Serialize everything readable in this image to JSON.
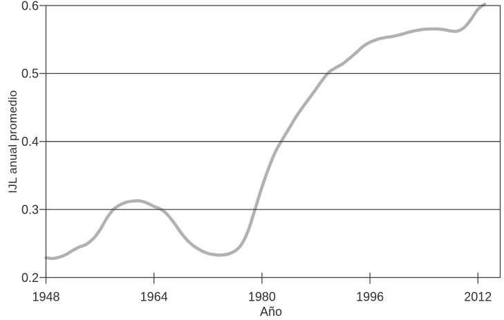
{
  "figure": {
    "background": "#ffffff"
  },
  "chart_data": {
    "type": "line",
    "title": "",
    "xlabel": "Año",
    "ylabel": "IJL anual promedio",
    "x_ticks": [
      1948,
      1964,
      1980,
      1996,
      2012
    ],
    "y_ticks": [
      0.2,
      0.3,
      0.4,
      0.5,
      0.6
    ],
    "xlim": [
      1948,
      2015.3
    ],
    "ylim": [
      0.2,
      0.6
    ],
    "grid": "horizontal-major-only",
    "frame": "full-box",
    "legend": "none",
    "axis_color": "#414141",
    "text_color": "#2e2e2e",
    "series": [
      {
        "name": "IJL anual promedio",
        "color": "#b1b1b1",
        "x": [
          1948,
          1949,
          1950,
          1951,
          1952,
          1953,
          1954,
          1955,
          1956,
          1957,
          1958,
          1959,
          1960,
          1961,
          1962,
          1963,
          1964,
          1965,
          1966,
          1967,
          1968,
          1969,
          1970,
          1971,
          1972,
          1973,
          1974,
          1975,
          1976,
          1977,
          1978,
          1979,
          1980,
          1981,
          1982,
          1983,
          1984,
          1985,
          1986,
          1987,
          1988,
          1989,
          1990,
          1991,
          1992,
          1993,
          1994,
          1995,
          1996,
          1997,
          1998,
          1999,
          2000,
          2001,
          2002,
          2003,
          2004,
          2005,
          2006,
          2007,
          2008,
          2009,
          2010,
          2011,
          2012,
          2013
        ],
        "values": [
          0.229,
          0.228,
          0.23,
          0.234,
          0.24,
          0.245,
          0.249,
          0.257,
          0.27,
          0.287,
          0.3,
          0.307,
          0.311,
          0.3125,
          0.3125,
          0.3095,
          0.3045,
          0.3005,
          0.2925,
          0.28,
          0.266,
          0.254,
          0.2455,
          0.2395,
          0.2355,
          0.2335,
          0.233,
          0.2345,
          0.239,
          0.249,
          0.27,
          0.301,
          0.333,
          0.361,
          0.385,
          0.4025,
          0.419,
          0.4355,
          0.45,
          0.4635,
          0.477,
          0.491,
          0.5025,
          0.509,
          0.5145,
          0.5225,
          0.531,
          0.54,
          0.546,
          0.55,
          0.5525,
          0.554,
          0.556,
          0.5585,
          0.5615,
          0.5635,
          0.565,
          0.5655,
          0.5655,
          0.5645,
          0.5625,
          0.5625,
          0.568,
          0.58,
          0.5945,
          0.602
        ]
      }
    ]
  }
}
